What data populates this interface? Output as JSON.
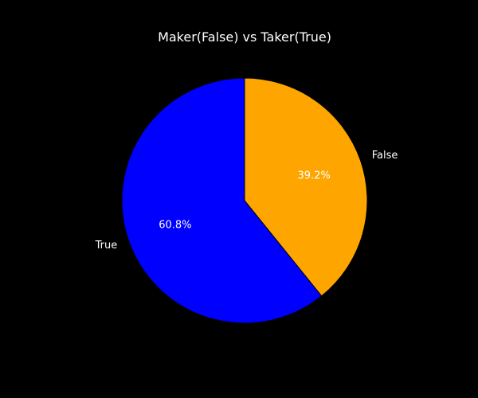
{
  "chart_data": {
    "type": "pie",
    "title": "Maker(False) vs Taker(True)",
    "slices": [
      {
        "label": "False",
        "value": 39.2,
        "pct_label": "39.2%",
        "color": "#ffa500"
      },
      {
        "label": "True",
        "value": 60.8,
        "pct_label": "60.8%",
        "color": "#0000ff"
      }
    ],
    "start_angle_deg": 90,
    "direction": "clockwise",
    "edge_color": "#000000",
    "background": "#000000"
  }
}
